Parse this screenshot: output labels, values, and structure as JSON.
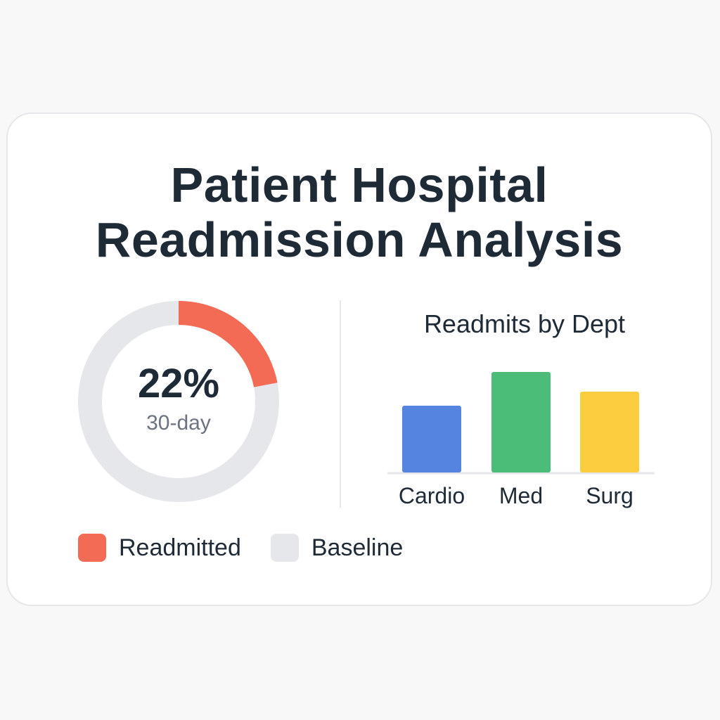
{
  "title": "Patient Hospital Readmission Analysis",
  "colors": {
    "readmitted": "#f46b55",
    "baseline": "#e5e7eb",
    "cardio": "#5584e0",
    "med": "#4bbd79",
    "surg": "#fbcd3f"
  },
  "chart_data": [
    {
      "type": "pie",
      "variant": "donut",
      "slices": [
        {
          "label": "Readmitted",
          "value": 22
        },
        {
          "label": "Baseline",
          "value": 78
        }
      ],
      "center_value": "22%",
      "center_label": "30-day",
      "legend": [
        "Readmitted",
        "Baseline"
      ],
      "legend_placement": "bottom"
    },
    {
      "type": "bar",
      "title": "Readmits by Dept",
      "categories": [
        "Cardio",
        "Med",
        "Surg"
      ],
      "values": [
        95,
        143,
        115
      ],
      "ylim": [
        0,
        160
      ],
      "grid": false
    }
  ]
}
